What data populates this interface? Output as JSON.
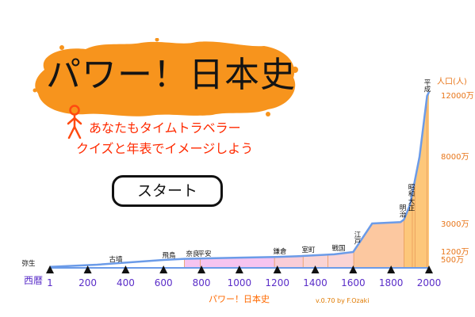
{
  "app": {
    "title": "パワー！日本史",
    "tagline_1": "あなたもタイムトラベラー",
    "tagline_2": "クイズと年表でイメージしよう",
    "start_label": "スタート",
    "footer_title": "パワー！日本史",
    "version": "v.0.70 by F.Ozaki"
  },
  "colors": {
    "banner": "#f7941d",
    "accent_text": "#ff2a00",
    "axis_text": "#5a2dc8",
    "population_text": "#e8761a",
    "curve": "#6b9be8"
  },
  "icons": [
    "stick-figure-icon",
    "triangle-marker-icon"
  ],
  "chart_data": {
    "type": "area",
    "xlabel": "西暦",
    "ylabel": "人口(人)",
    "x_ticks": [
      "1",
      "200",
      "400",
      "600",
      "800",
      "1000",
      "1200",
      "1400",
      "1600",
      "1800",
      "2000"
    ],
    "y_ticks": [
      "500万",
      "1200万",
      "3000万",
      "8000万",
      "12000万"
    ],
    "xlim": [
      1,
      2000
    ],
    "ylim": [
      0,
      12000
    ],
    "series": [
      {
        "x": [
          1,
          250,
          600,
          710,
          1000,
          1190,
          1300,
          1500,
          1600,
          1700,
          1850,
          1868,
          1900,
          1950,
          1990,
          2000
        ],
        "y": [
          60,
          200,
          500,
          600,
          700,
          760,
          820,
          1000,
          1200,
          3000,
          3100,
          3300,
          4400,
          8000,
          12000,
          12700
        ]
      }
    ],
    "eras": [
      {
        "label": "弥生",
        "start": 1,
        "end": 250,
        "color": "#ffffff"
      },
      {
        "label": "古墳",
        "start": 250,
        "end": 592,
        "color": "#ffffff"
      },
      {
        "label": "飛鳥",
        "start": 592,
        "end": 710,
        "color": "#ffffff"
      },
      {
        "label": "奈良",
        "start": 710,
        "end": 794,
        "color": "#f6c4f0"
      },
      {
        "label": "平安",
        "start": 794,
        "end": 1185,
        "color": "#f6c4f0"
      },
      {
        "label": "鎌倉",
        "start": 1185,
        "end": 1336,
        "color": "#f9cdd8"
      },
      {
        "label": "室町",
        "start": 1336,
        "end": 1467,
        "color": "#fad4d4"
      },
      {
        "label": "戦国",
        "start": 1467,
        "end": 1603,
        "color": "#fad4d4"
      },
      {
        "label": "江戸",
        "start": 1603,
        "end": 1868,
        "color": "#fcc8a0"
      },
      {
        "label": "明治",
        "start": 1868,
        "end": 1912,
        "color": "#fdc77a"
      },
      {
        "label": "大正",
        "start": 1912,
        "end": 1926,
        "color": "#fdc77a"
      },
      {
        "label": "昭和",
        "start": 1926,
        "end": 1989,
        "color": "#fdc77a"
      },
      {
        "label": "平成",
        "start": 1989,
        "end": 2000,
        "color": "#fdc77a"
      }
    ]
  }
}
